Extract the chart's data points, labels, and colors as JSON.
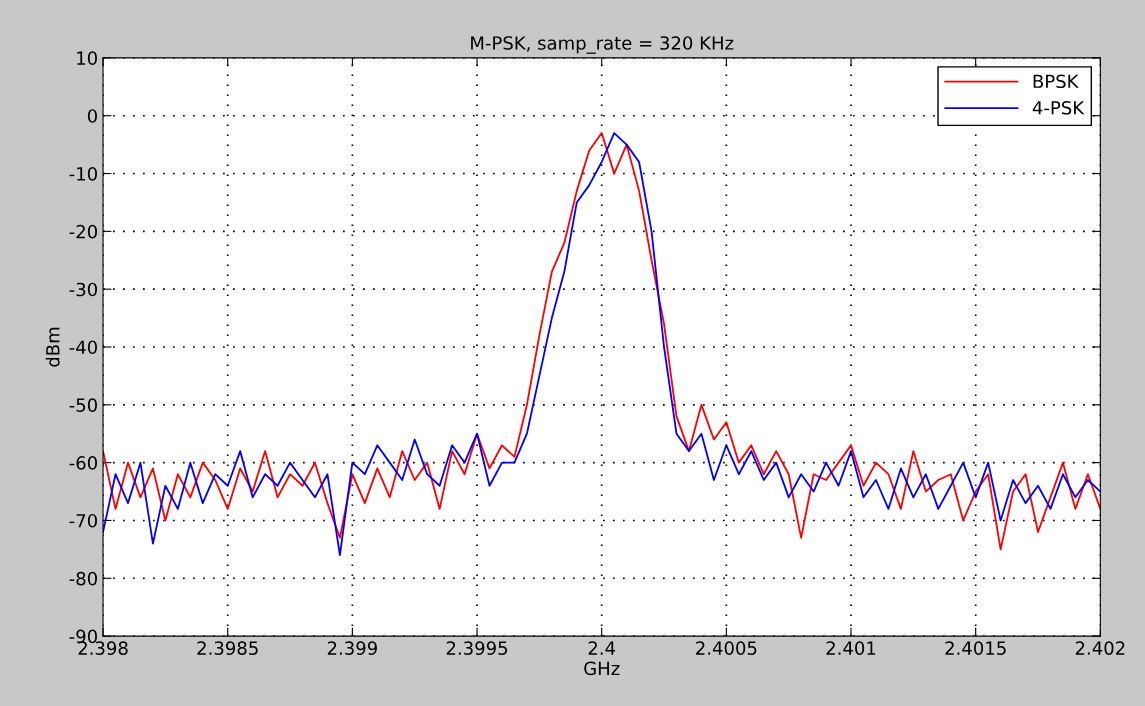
{
  "chart_data": {
    "type": "line",
    "title": "M-PSK, samp_rate = 320 KHz",
    "xlabel": "GHz",
    "ylabel": "dBm",
    "x": [
      2.398,
      2.39805,
      2.3981,
      2.39815,
      2.3982,
      2.39825,
      2.3983,
      2.39835,
      2.3984,
      2.39845,
      2.3985,
      2.39855,
      2.3986,
      2.39865,
      2.3987,
      2.39875,
      2.3988,
      2.39885,
      2.3989,
      2.39895,
      2.399,
      2.39905,
      2.3991,
      2.39915,
      2.3992,
      2.39925,
      2.3993,
      2.39935,
      2.3994,
      2.39945,
      2.3995,
      2.39955,
      2.3996,
      2.39965,
      2.3997,
      2.39975,
      2.3998,
      2.39985,
      2.3999,
      2.39995,
      2.4,
      2.40005,
      2.4001,
      2.40015,
      2.4002,
      2.40025,
      2.4003,
      2.40035,
      2.4004,
      2.40045,
      2.4005,
      2.40055,
      2.4006,
      2.40065,
      2.4007,
      2.40075,
      2.4008,
      2.40085,
      2.4009,
      2.40095,
      2.401,
      2.40105,
      2.4011,
      2.40115,
      2.4012,
      2.40125,
      2.4013,
      2.40135,
      2.4014,
      2.40145,
      2.4015,
      2.40155,
      2.4016,
      2.40165,
      2.4017,
      2.40175,
      2.4018,
      2.40185,
      2.4019,
      2.40195,
      2.402
    ],
    "series": [
      {
        "name": "BPSK",
        "color": "#ff0000",
        "values": [
          -58,
          -68,
          -60,
          -66,
          -61,
          -70,
          -62,
          -66,
          -60,
          -63,
          -68,
          -61,
          -65,
          -58,
          -66,
          -62,
          -64,
          -60,
          -67,
          -73,
          -62,
          -67,
          -61,
          -66,
          -58,
          -63,
          -60,
          -68,
          -58,
          -62,
          -55,
          -61,
          -57,
          -59,
          -50,
          -38,
          -27,
          -22,
          -13,
          -6,
          -3,
          -10,
          -5,
          -13,
          -25,
          -36,
          -52,
          -58,
          -50,
          -56,
          -53,
          -60,
          -57,
          -62,
          -58,
          -62,
          -73,
          -62,
          -63,
          -60,
          -57,
          -64,
          -60,
          -62,
          -68,
          -58,
          -65,
          -63,
          -62,
          -70,
          -65,
          -62,
          -75,
          -65,
          -62,
          -72,
          -66,
          -60,
          -68,
          -62,
          -68
        ]
      },
      {
        "name": "4-PSK",
        "color": "#0000ff",
        "values": [
          -72,
          -62,
          -67,
          -60,
          -74,
          -64,
          -68,
          -60,
          -67,
          -62,
          -64,
          -58,
          -66,
          -62,
          -64,
          -60,
          -63,
          -66,
          -62,
          -76,
          -60,
          -62,
          -57,
          -60,
          -63,
          -56,
          -62,
          -64,
          -57,
          -60,
          -55,
          -64,
          -60,
          -60,
          -55,
          -45,
          -35,
          -27,
          -15,
          -12,
          -8,
          -3,
          -5,
          -8,
          -20,
          -40,
          -55,
          -58,
          -55,
          -63,
          -57,
          -62,
          -58,
          -63,
          -60,
          -66,
          -62,
          -65,
          -60,
          -64,
          -58,
          -66,
          -63,
          -68,
          -61,
          -66,
          -62,
          -68,
          -64,
          -60,
          -66,
          -60,
          -70,
          -63,
          -67,
          -64,
          -68,
          -62,
          -66,
          -63,
          -65
        ]
      }
    ],
    "xlim": [
      2.398,
      2.402
    ],
    "xticks": [
      2.398,
      2.3985,
      2.399,
      2.3995,
      2.4,
      2.4005,
      2.401,
      2.4015,
      2.402
    ],
    "ylim": [
      -90,
      10
    ],
    "yticks": [
      -90,
      -80,
      -70,
      -60,
      -50,
      -40,
      -30,
      -20,
      -10,
      0,
      10
    ],
    "grid": true,
    "legend": "top right",
    "line_style": "solid",
    "marker": "none"
  }
}
